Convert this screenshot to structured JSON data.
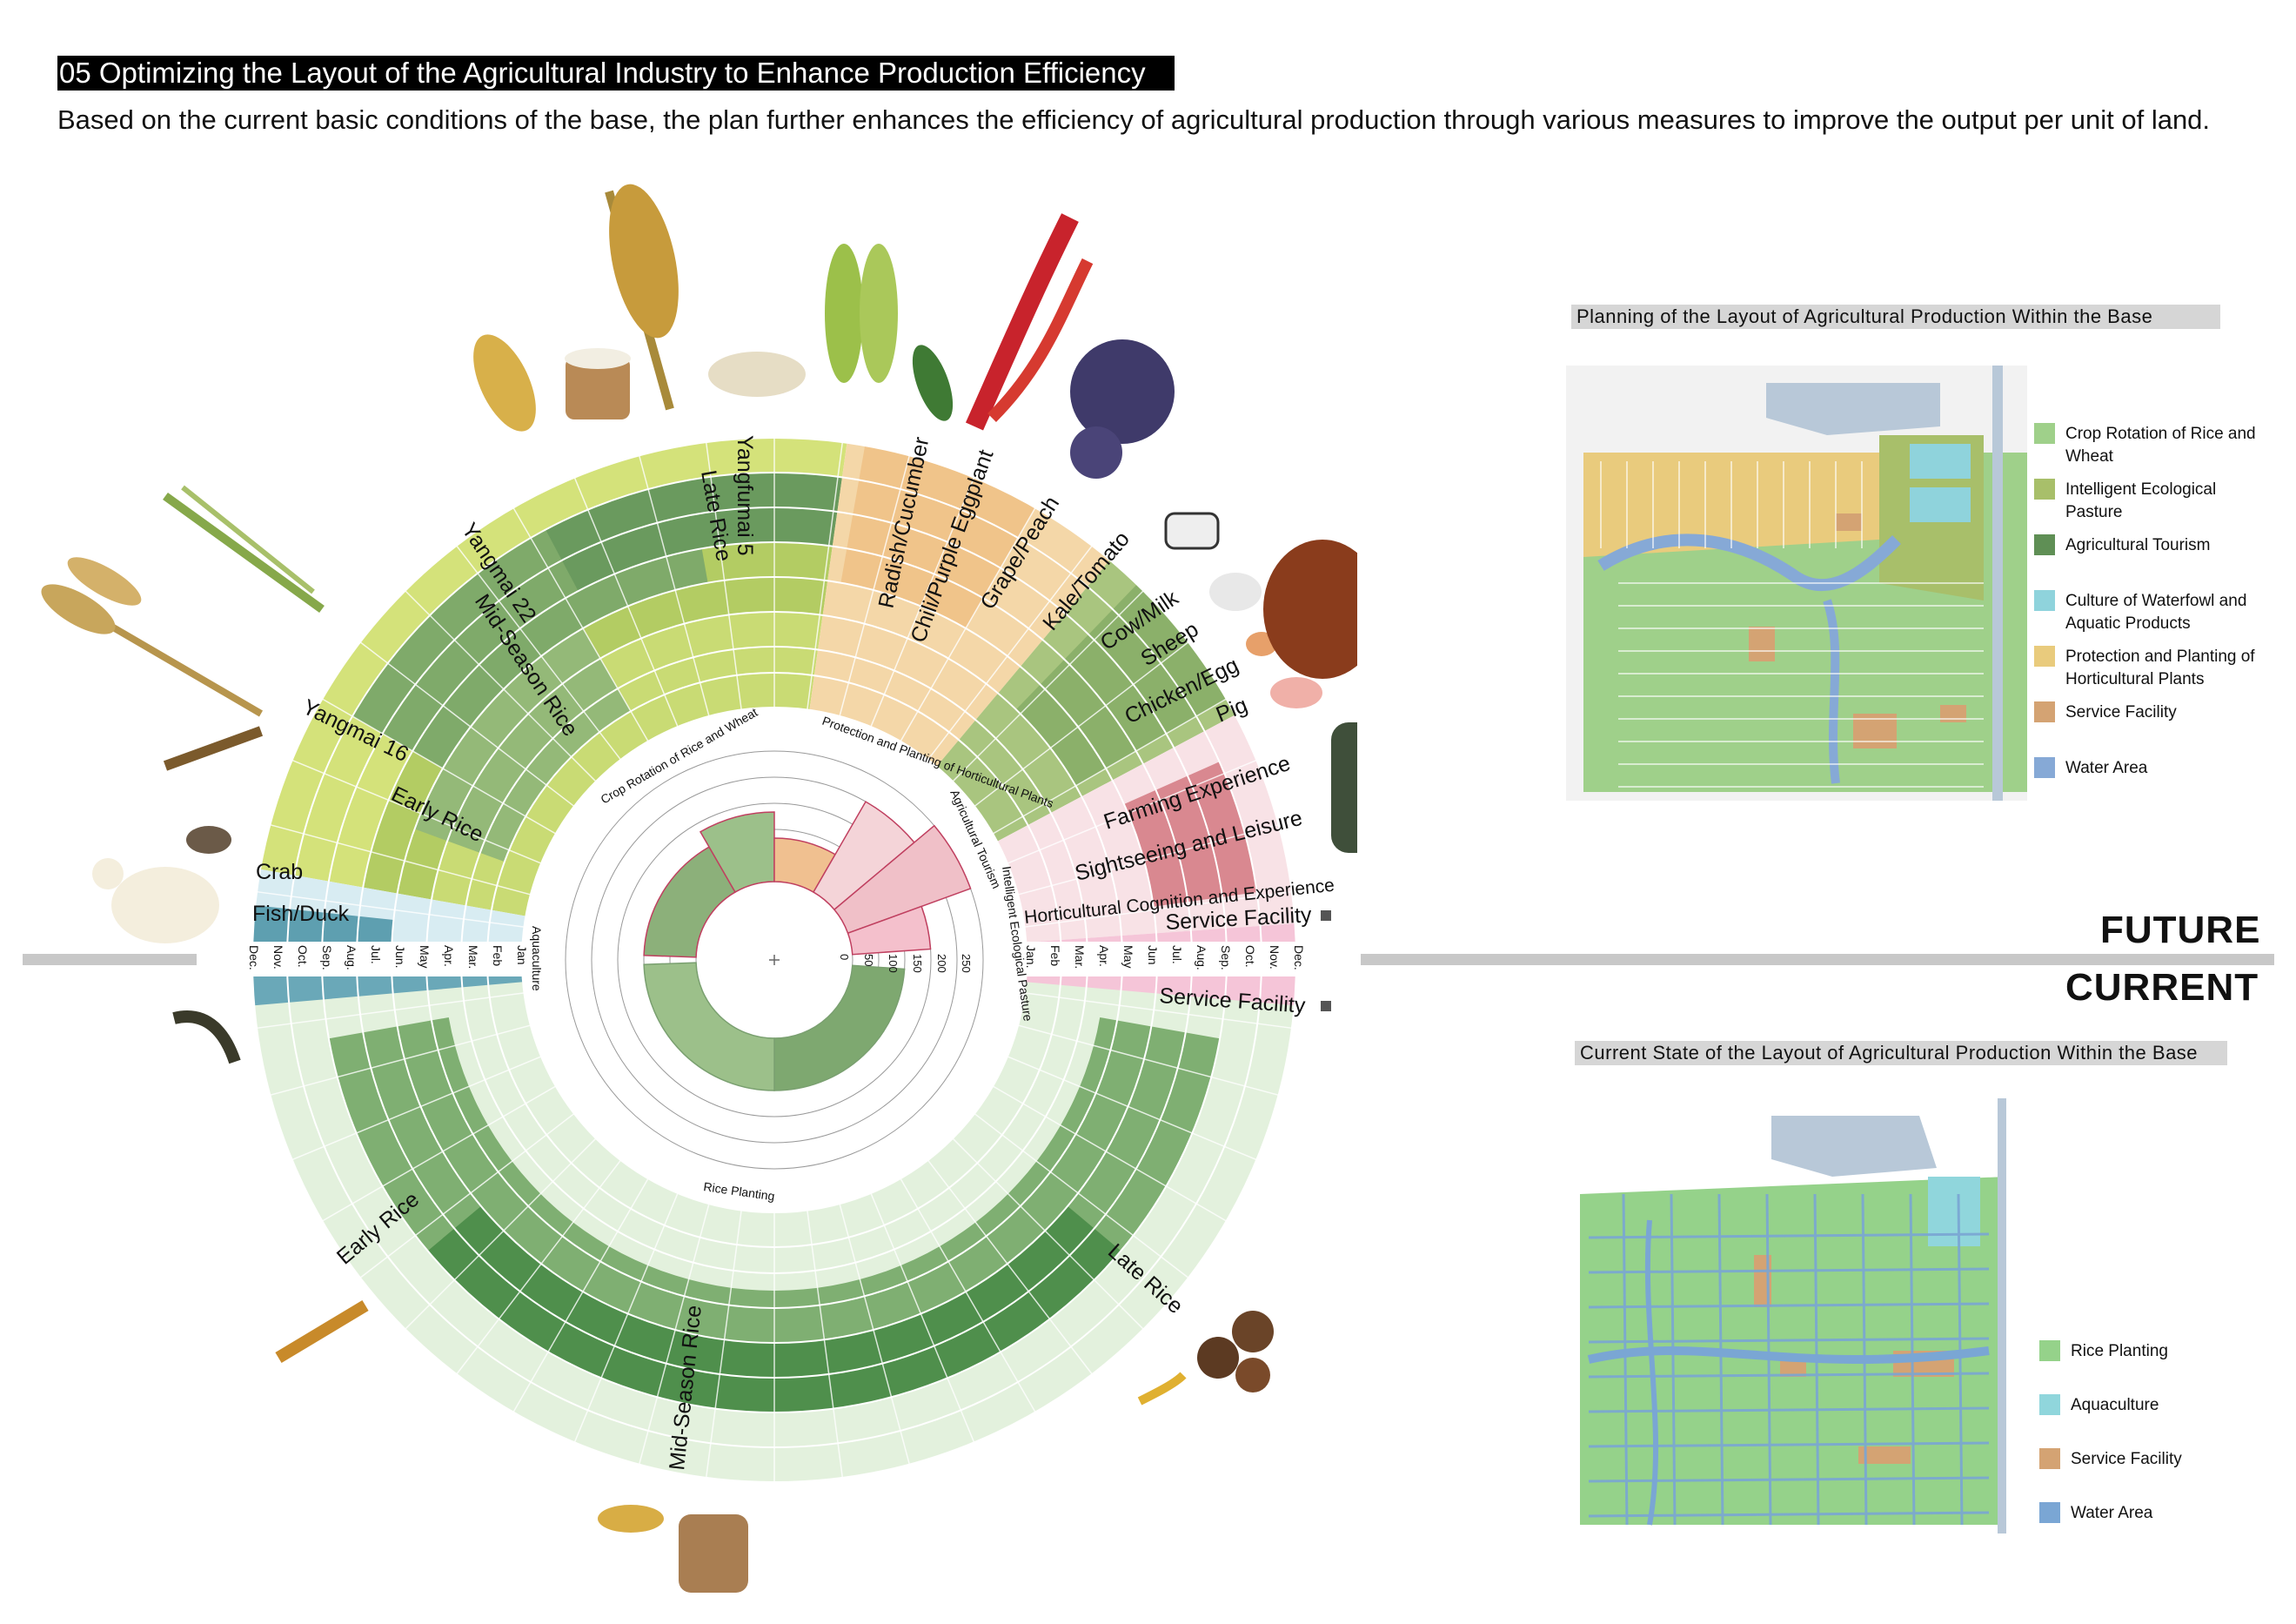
{
  "header": {
    "title": "05 Optimizing the Layout of the Agricultural Industry to Enhance Production Efficiency",
    "subtitle": "Based on the current basic conditions of the base, the plan further enhances the efficiency of agricultural production through various measures to improve the output per unit of land."
  },
  "divider": {
    "future_label": "FUTURE",
    "current_label": "CURRENT"
  },
  "future_panel": {
    "title": "Planning of the Layout of Agricultural Production Within the Base",
    "legend": [
      {
        "label": "Crop Rotation of Rice and Wheat",
        "color": "#9fd08a"
      },
      {
        "label": "Intelligent Ecological Pasture",
        "color": "#a8bf6a"
      },
      {
        "label": "Agricultural Tourism",
        "color": "#5f8f55"
      },
      {
        "label": "Culture of Waterfowl and Aquatic Products",
        "color": "#8fd3dc"
      },
      {
        "label": "Protection and Planting of Horticultural Plants",
        "color": "#e9cb7d"
      },
      {
        "label": "Service Facility",
        "color": "#d4a373"
      },
      {
        "label": "Water Area",
        "color": "#86a9d6"
      }
    ]
  },
  "current_panel": {
    "title": "Current State of the Layout of Agricultural Production Within the Base",
    "legend": [
      {
        "label": "Rice Planting",
        "color": "#95d28a"
      },
      {
        "label": "Aquaculture",
        "color": "#90d6dc"
      },
      {
        "label": "Service Facility",
        "color": "#d4a373"
      },
      {
        "label": "Water Area",
        "color": "#7aa6d4"
      }
    ]
  },
  "wheel": {
    "months_left": [
      "Dec.",
      "Nov.",
      "Oct.",
      "Sep.",
      "Aug.",
      "Jul.",
      "Jun.",
      "May",
      "Apr.",
      "Mar.",
      "Feb",
      "Jan"
    ],
    "months_right": [
      "Jan.",
      "Feb",
      "Mar.",
      "Apr.",
      "May",
      "Jun",
      "Jul.",
      "Aug.",
      "Sep.",
      "Oct.",
      "Nov.",
      "Dec."
    ],
    "scale_ticks": [
      "0",
      "50",
      "100",
      "150",
      "200",
      "250"
    ],
    "future_labels": {
      "yangfumai": "Yangfumai 5",
      "late_rice": "Late Rice",
      "yangmai22": "Yangmai 22",
      "mid_season_rice": "Mid-Season Rice",
      "yangmai16": "Yangmai 16",
      "early_rice": "Early Rice",
      "radish": "Radish/Cucumber",
      "chili": "Chili/Purple Eggplant",
      "grape": "Grape/Peach",
      "kale": "Kale/Tomato",
      "cow": "Cow/Milk",
      "sheep": "Sheep",
      "chicken": "Chicken/Egg",
      "pig": "Pig",
      "farming": "Farming Experience",
      "sightseeing": "Sightseeing and Leisure",
      "horticultural": "Horticultural Cognition and Experience",
      "service": "Service Facility",
      "crab": "Crab",
      "fish": "Fish/Duck"
    },
    "inner_labels": {
      "crop_rotation": "Crop Rotation of Rice and Wheat",
      "protection": "Protection and Planting of Horticultural Plants",
      "agri_tourism": "Agricultural Tourism",
      "pasture": "Intelligent Ecological Pasture",
      "aquaculture": "Aquaculture",
      "rice_planting": "Rice Planting"
    },
    "current_labels": {
      "early_rice": "Early Rice",
      "mid_season_rice": "Mid-Season Rice",
      "late_rice": "Late Rice",
      "service": "Service Facility"
    }
  }
}
